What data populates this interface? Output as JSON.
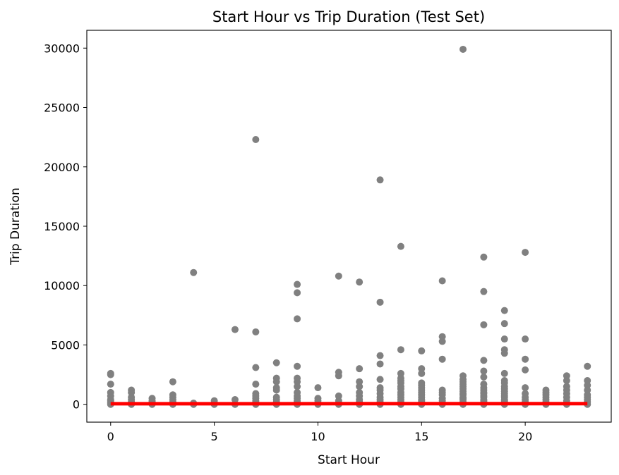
{
  "chart_data": {
    "type": "scatter",
    "title": "Start Hour vs Trip Duration (Test Set)",
    "xlabel": "Start Hour",
    "ylabel": "Trip Duration",
    "xlim": [
      -1.15,
      24.15
    ],
    "ylim": [
      -1500,
      31500
    ],
    "xticks": [
      0,
      5,
      10,
      15,
      20
    ],
    "yticks": [
      0,
      5000,
      10000,
      15000,
      20000,
      25000,
      30000
    ],
    "grid": false,
    "legend": "none",
    "colors": {
      "points": "#808080",
      "fit_line": "#ff0000"
    },
    "series": [
      {
        "type": "scatter",
        "x": [
          0,
          0,
          0,
          0,
          0,
          0,
          0,
          0,
          0,
          0,
          1,
          1,
          1,
          1,
          1,
          1,
          1,
          2,
          2,
          2,
          2,
          2,
          3,
          3,
          3,
          3,
          3,
          3,
          3,
          4,
          4,
          4,
          5,
          5,
          5,
          6,
          6,
          6,
          7,
          7,
          7,
          7,
          7,
          7,
          7,
          7,
          7,
          7,
          7,
          8,
          8,
          8,
          8,
          8,
          8,
          8,
          8,
          8,
          8,
          9,
          9,
          9,
          9,
          9,
          9,
          9,
          9,
          9,
          9,
          9,
          9,
          9,
          9,
          10,
          10,
          10,
          10,
          10,
          11,
          11,
          11,
          11,
          11,
          11,
          12,
          12,
          12,
          12,
          12,
          12,
          12,
          12,
          12,
          13,
          13,
          13,
          13,
          13,
          13,
          13,
          13,
          13,
          13,
          13,
          13,
          13,
          14,
          14,
          14,
          14,
          14,
          14,
          14,
          14,
          14,
          14,
          14,
          14,
          14,
          14,
          14,
          15,
          15,
          15,
          15,
          15,
          15,
          15,
          15,
          15,
          15,
          15,
          15,
          15,
          15,
          15,
          16,
          16,
          16,
          16,
          16,
          16,
          16,
          16,
          16,
          16,
          16,
          17,
          17,
          17,
          17,
          17,
          17,
          17,
          17,
          17,
          17,
          17,
          17,
          17,
          17,
          17,
          17,
          18,
          18,
          18,
          18,
          18,
          18,
          18,
          18,
          18,
          18,
          18,
          18,
          18,
          18,
          18,
          18,
          18,
          18,
          18,
          19,
          19,
          19,
          19,
          19,
          19,
          19,
          19,
          19,
          19,
          19,
          19,
          19,
          19,
          19,
          19,
          19,
          19,
          19,
          20,
          20,
          20,
          20,
          20,
          20,
          20,
          20,
          20,
          20,
          20,
          21,
          21,
          21,
          21,
          21,
          21,
          21,
          21,
          22,
          22,
          22,
          22,
          22,
          22,
          22,
          22,
          22,
          23,
          23,
          23,
          23,
          23,
          23,
          23,
          23,
          23
        ],
        "y": [
          2600,
          2500,
          1700,
          1000,
          700,
          400,
          300,
          200,
          100,
          0,
          1200,
          1000,
          600,
          400,
          200,
          100,
          0,
          500,
          300,
          200,
          100,
          0,
          1900,
          800,
          600,
          400,
          200,
          100,
          0,
          11100,
          100,
          0,
          300,
          100,
          0,
          6300,
          400,
          0,
          22300,
          6100,
          3100,
          1700,
          900,
          700,
          500,
          300,
          200,
          100,
          0,
          3500,
          2200,
          1900,
          1400,
          1200,
          600,
          400,
          200,
          100,
          0,
          10100,
          9400,
          7200,
          3200,
          2200,
          1900,
          1500,
          1000,
          700,
          500,
          300,
          200,
          100,
          0,
          1400,
          500,
          300,
          100,
          0,
          10800,
          2700,
          2400,
          700,
          300,
          0,
          10300,
          3000,
          1900,
          1500,
          1000,
          700,
          400,
          200,
          0,
          18900,
          8600,
          4100,
          3400,
          2100,
          1400,
          1200,
          900,
          600,
          400,
          200,
          100,
          0,
          13300,
          4600,
          2600,
          2200,
          2000,
          1800,
          1500,
          1300,
          1000,
          800,
          600,
          400,
          200,
          100,
          0,
          4500,
          3000,
          2600,
          1800,
          1600,
          1400,
          1200,
          1000,
          800,
          600,
          400,
          300,
          200,
          100,
          0,
          10400,
          5700,
          5300,
          3800,
          1200,
          1000,
          800,
          500,
          300,
          100,
          0,
          29900,
          2400,
          2100,
          1900,
          1700,
          1500,
          1300,
          1100,
          900,
          800,
          600,
          500,
          400,
          200,
          100,
          0,
          12400,
          9500,
          6700,
          3700,
          2800,
          2300,
          1700,
          1400,
          1200,
          1000,
          900,
          700,
          600,
          400,
          300,
          200,
          150,
          100,
          0,
          7900,
          6800,
          5500,
          4600,
          4300,
          2600,
          2000,
          1800,
          1500,
          1300,
          1100,
          900,
          700,
          600,
          400,
          300,
          200,
          100,
          0,
          12800,
          5500,
          3800,
          2900,
          1400,
          900,
          600,
          400,
          200,
          100,
          0,
          1200,
          1000,
          800,
          600,
          400,
          200,
          100,
          0,
          2400,
          2000,
          1500,
          1200,
          900,
          600,
          300,
          100,
          0,
          3200,
          2000,
          1600,
          1200,
          800,
          600,
          400,
          200,
          0
        ]
      },
      {
        "type": "line",
        "x": [
          0,
          23
        ],
        "y": [
          50,
          60
        ]
      }
    ]
  }
}
